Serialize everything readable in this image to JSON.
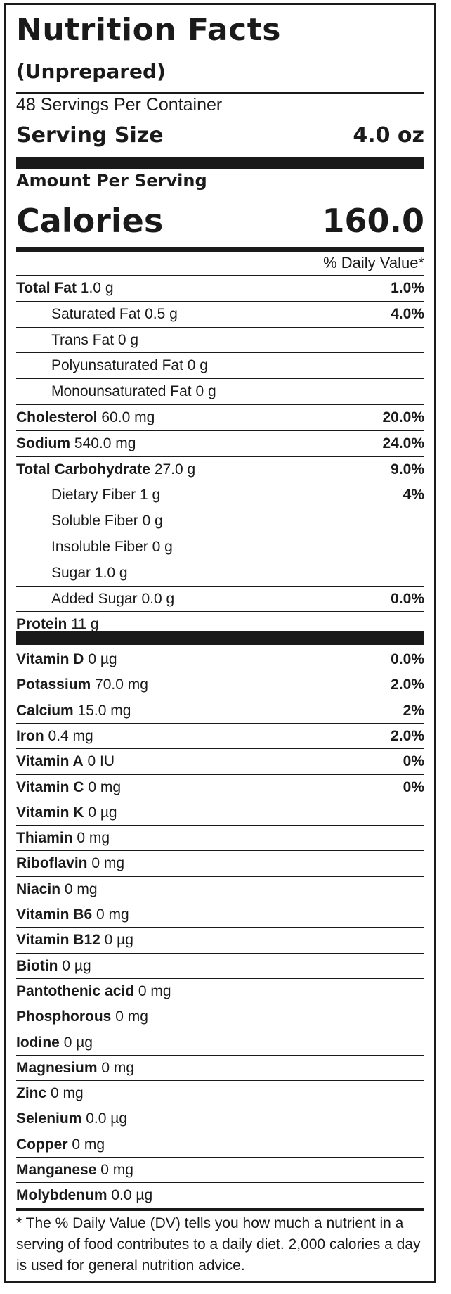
{
  "header": {
    "title": "Nutrition Facts",
    "subtitle": "(Unprepared)",
    "servings_per_container": "48 Servings Per Container",
    "serving_size_label": "Serving Size",
    "serving_size_value": "4.0 oz",
    "amount_per_serving": "Amount Per Serving",
    "calories_label": "Calories",
    "calories_value": "160.0",
    "dv_header": "% Daily Value*"
  },
  "nutrients": [
    {
      "name": "Total Fat",
      "amount": "1.0 g",
      "dv": "1.0%",
      "bold": true,
      "indent": false
    },
    {
      "name": "Saturated Fat",
      "amount": "0.5 g",
      "dv": "4.0%",
      "bold": false,
      "indent": true
    },
    {
      "name": "Trans Fat",
      "amount": "0 g",
      "dv": "",
      "bold": false,
      "indent": true
    },
    {
      "name": "Polyunsaturated Fat",
      "amount": "0 g",
      "dv": "",
      "bold": false,
      "indent": true
    },
    {
      "name": "Monounsaturated Fat",
      "amount": "0 g",
      "dv": "",
      "bold": false,
      "indent": true
    },
    {
      "name": "Cholesterol",
      "amount": "60.0 mg",
      "dv": "20.0%",
      "bold": true,
      "indent": false
    },
    {
      "name": "Sodium",
      "amount": "540.0 mg",
      "dv": "24.0%",
      "bold": true,
      "indent": false
    },
    {
      "name": "Total Carbohydrate",
      "amount": "27.0 g",
      "dv": "9.0%",
      "bold": true,
      "indent": false
    },
    {
      "name": "Dietary Fiber",
      "amount": "1 g",
      "dv": "4%",
      "bold": false,
      "indent": true
    },
    {
      "name": "Soluble Fiber",
      "amount": "0 g",
      "dv": "",
      "bold": false,
      "indent": true
    },
    {
      "name": "Insoluble Fiber",
      "amount": "0 g",
      "dv": "",
      "bold": false,
      "indent": true
    },
    {
      "name": "Sugar",
      "amount": "1.0 g",
      "dv": "",
      "bold": false,
      "indent": true
    },
    {
      "name": "Added Sugar",
      "amount": "0.0 g",
      "dv": "0.0%",
      "bold": false,
      "indent": true
    },
    {
      "name": "Protein",
      "amount": "11 g",
      "dv": "",
      "bold": true,
      "indent": false
    }
  ],
  "vitamins": [
    {
      "name": "Vitamin D",
      "amount": "0 µg",
      "dv": "0.0%"
    },
    {
      "name": "Potassium",
      "amount": "70.0 mg",
      "dv": "2.0%"
    },
    {
      "name": "Calcium",
      "amount": "15.0 mg",
      "dv": "2%"
    },
    {
      "name": "Iron",
      "amount": "0.4 mg",
      "dv": "2.0%"
    },
    {
      "name": "Vitamin A",
      "amount": "0 IU",
      "dv": "0%"
    },
    {
      "name": "Vitamin C",
      "amount": "0 mg",
      "dv": "0%"
    },
    {
      "name": "Vitamin K",
      "amount": "0 µg",
      "dv": ""
    },
    {
      "name": "Thiamin",
      "amount": "0 mg",
      "dv": ""
    },
    {
      "name": "Riboflavin",
      "amount": "0 mg",
      "dv": ""
    },
    {
      "name": "Niacin",
      "amount": "0 mg",
      "dv": ""
    },
    {
      "name": "Vitamin B6",
      "amount": "0 mg",
      "dv": ""
    },
    {
      "name": "Vitamin B12",
      "amount": "0 µg",
      "dv": ""
    },
    {
      "name": "Biotin",
      "amount": "0 µg",
      "dv": ""
    },
    {
      "name": "Pantothenic acid",
      "amount": "0 mg",
      "dv": ""
    },
    {
      "name": "Phosphorous",
      "amount": "0 mg",
      "dv": ""
    },
    {
      "name": "Iodine",
      "amount": "0 µg",
      "dv": ""
    },
    {
      "name": "Magnesium",
      "amount": "0 mg",
      "dv": ""
    },
    {
      "name": "Zinc",
      "amount": "0 mg",
      "dv": ""
    },
    {
      "name": "Selenium",
      "amount": "0.0 µg",
      "dv": ""
    },
    {
      "name": "Copper",
      "amount": "0 mg",
      "dv": ""
    },
    {
      "name": "Manganese",
      "amount": "0 mg",
      "dv": ""
    },
    {
      "name": "Molybdenum",
      "amount": "0.0 µg",
      "dv": ""
    }
  ],
  "footnote": "* The % Daily Value (DV) tells you how much a nutrient in a serving of food contributes to a daily diet. 2,000 calories a day is used for general nutrition advice."
}
